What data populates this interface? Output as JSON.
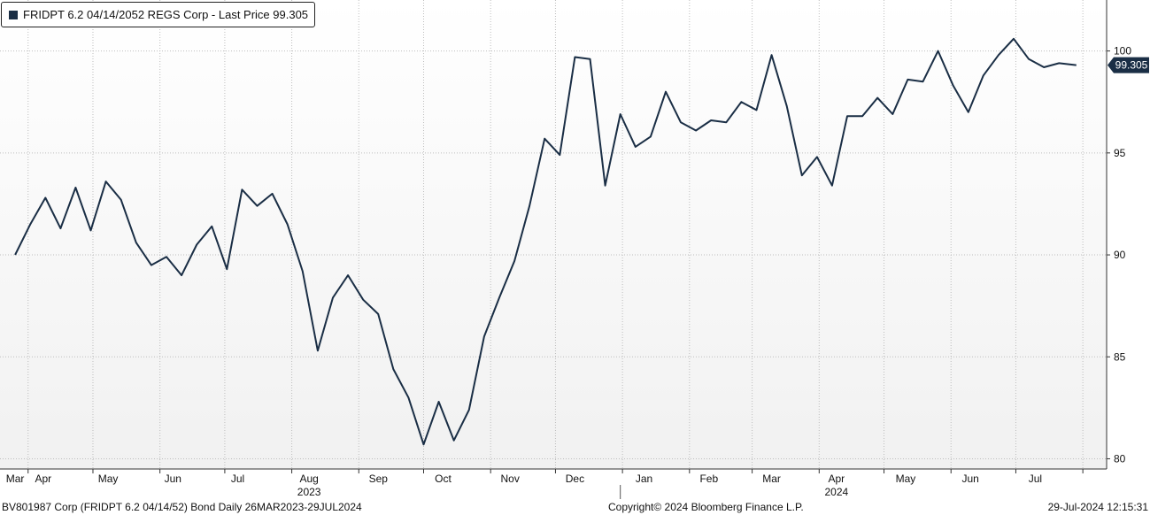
{
  "chart_data": {
    "type": "line",
    "title": "FRIDPT 6.2 04/14/2052 REGS Corp - Last Price 99.305",
    "last_price_label": "99.305",
    "series": [
      {
        "name": "FRIDPT 6.2 04/14/2052 REGS Corp - Last Price 99.305",
        "color": "#1a2e45",
        "x": [
          "2023-03-26",
          "2023-04-02",
          "2023-04-09",
          "2023-04-16",
          "2023-04-23",
          "2023-04-30",
          "2023-05-07",
          "2023-05-14",
          "2023-05-21",
          "2023-05-28",
          "2023-06-04",
          "2023-06-11",
          "2023-06-18",
          "2023-06-25",
          "2023-07-02",
          "2023-07-09",
          "2023-07-16",
          "2023-07-23",
          "2023-07-30",
          "2023-08-06",
          "2023-08-13",
          "2023-08-20",
          "2023-08-27",
          "2023-09-03",
          "2023-09-10",
          "2023-09-17",
          "2023-09-24",
          "2023-10-01",
          "2023-10-08",
          "2023-10-15",
          "2023-10-22",
          "2023-10-29",
          "2023-11-05",
          "2023-11-12",
          "2023-11-19",
          "2023-11-26",
          "2023-12-03",
          "2023-12-10",
          "2023-12-17",
          "2023-12-24",
          "2023-12-31",
          "2024-01-07",
          "2024-01-14",
          "2024-01-21",
          "2024-01-28",
          "2024-02-04",
          "2024-02-11",
          "2024-02-18",
          "2024-02-25",
          "2024-03-03",
          "2024-03-10",
          "2024-03-17",
          "2024-03-24",
          "2024-03-31",
          "2024-04-07",
          "2024-04-14",
          "2024-04-21",
          "2024-04-28",
          "2024-05-05",
          "2024-05-12",
          "2024-05-19",
          "2024-05-26",
          "2024-06-02",
          "2024-06-09",
          "2024-06-16",
          "2024-06-23",
          "2024-06-30",
          "2024-07-07",
          "2024-07-14",
          "2024-07-21",
          "2024-07-29"
        ],
        "values": [
          90.0,
          91.5,
          92.8,
          91.3,
          93.3,
          91.2,
          93.6,
          92.7,
          90.6,
          89.5,
          89.9,
          89.0,
          90.5,
          91.4,
          89.3,
          93.2,
          92.4,
          93.0,
          91.5,
          89.2,
          85.3,
          87.9,
          89.0,
          87.8,
          87.1,
          84.4,
          83.0,
          80.7,
          82.8,
          80.9,
          82.4,
          86.0,
          87.9,
          89.7,
          92.4,
          95.7,
          94.9,
          99.7,
          99.6,
          93.4,
          96.9,
          95.3,
          95.8,
          98.0,
          96.5,
          96.1,
          96.6,
          96.5,
          97.5,
          97.1,
          99.8,
          97.3,
          93.9,
          94.8,
          93.4,
          96.8,
          96.8,
          97.7,
          96.9,
          98.6,
          98.5,
          100.0,
          98.3,
          97.0,
          98.8,
          99.8,
          100.6,
          99.6,
          99.2,
          99.4,
          99.305
        ]
      }
    ],
    "ylim": [
      79.5,
      102.5
    ],
    "yticks": [
      80,
      85,
      90,
      95,
      100
    ],
    "ytick_labels": [
      "80",
      "85",
      "90",
      "95",
      "100"
    ],
    "xlim": [
      "2023-03-19",
      "2024-08-12"
    ],
    "xticks": [
      {
        "label": "Mar",
        "date": "2023-03-26"
      },
      {
        "label": "Apr",
        "date": "2023-04-08"
      },
      {
        "label": "May",
        "date": "2023-05-08"
      },
      {
        "label": "Jun",
        "date": "2023-06-07"
      },
      {
        "label": "Jul",
        "date": "2023-07-07"
      },
      {
        "label": "Aug",
        "date": "2023-08-09"
      },
      {
        "label": "Sep",
        "date": "2023-09-10"
      },
      {
        "label": "Oct",
        "date": "2023-10-10"
      },
      {
        "label": "Nov",
        "date": "2023-11-10"
      },
      {
        "label": "Dec",
        "date": "2023-12-10"
      },
      {
        "label": "Jan",
        "date": "2024-01-11"
      },
      {
        "label": "Feb",
        "date": "2024-02-10"
      },
      {
        "label": "Mar",
        "date": "2024-03-10"
      },
      {
        "label": "Apr",
        "date": "2024-04-09"
      },
      {
        "label": "May",
        "date": "2024-05-11"
      },
      {
        "label": "Jun",
        "date": "2024-06-10"
      },
      {
        "label": "Jul",
        "date": "2024-07-10"
      }
    ],
    "xgrid": [
      "2023-04-01",
      "2023-05-01",
      "2023-06-01",
      "2023-07-01",
      "2023-08-01",
      "2023-09-01",
      "2023-10-01",
      "2023-11-01",
      "2023-12-01",
      "2024-01-01",
      "2024-02-01",
      "2024-03-01",
      "2024-04-01",
      "2024-05-01",
      "2024-06-01",
      "2024-07-01",
      "2024-08-01"
    ],
    "year_labels": [
      {
        "label": "2023",
        "date": "2023-08-09"
      },
      {
        "label": "2024",
        "date": "2024-04-09"
      }
    ],
    "year_separator_date": "2023-12-31",
    "grid": true,
    "legend_position": "top-left",
    "background_gradient": [
      "#ffffff",
      "#f1f1f1"
    ]
  },
  "footer": {
    "left": "BV801987 Corp (FRIDPT 6.2 04/14/52) Bond  Daily 26MAR2023-29JUL2024",
    "center": "Copyright© 2024 Bloomberg Finance L.P.",
    "right": "29-Jul-2024 12:15:31"
  }
}
